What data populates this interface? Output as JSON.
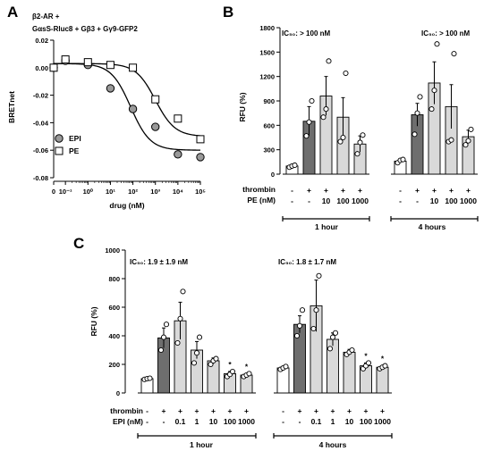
{
  "panels": {
    "a": {
      "letter": "A"
    },
    "b": {
      "letter": "B"
    },
    "c": {
      "letter": "C"
    }
  },
  "colors": {
    "black": "#000000",
    "dark_bar": "#6e6e6e",
    "light_bar": "#d9d9d9",
    "white": "#ffffff",
    "epi_fill": "#999999"
  },
  "chart_data": [
    {
      "id": "A",
      "type": "scatter",
      "title_line1": "β2-AR +",
      "title_line2": "GαsS-Rluc8 + Gβ3 + Gγ9-GFP2",
      "xlabel": "drug (nM)",
      "ylabel": "BRETnet",
      "xscale": "log",
      "xlim": [
        0.03,
        100000
      ],
      "ylim": [
        -0.08,
        0.02
      ],
      "yticks": [
        "0.02",
        "0.00",
        "-0.02",
        "-0.04",
        "-0.06",
        "-0.08"
      ],
      "ytick_values": [
        0.02,
        0.0,
        -0.02,
        -0.04,
        -0.06,
        -0.08
      ],
      "xticks": [
        "0",
        "10⁻¹",
        "10⁰",
        "10¹",
        "10²",
        "10³",
        "10⁴",
        "10⁵"
      ],
      "xtick_values": [
        0.03,
        0.1,
        1,
        10,
        100,
        1000,
        10000,
        100000
      ],
      "legend": [
        {
          "name": "EPI",
          "marker": "circle"
        },
        {
          "name": "PE",
          "marker": "square"
        }
      ],
      "series": [
        {
          "name": "EPI",
          "x": [
            0.03,
            0.1,
            1,
            10,
            100,
            1000,
            10000,
            100000
          ],
          "y": [
            0.0,
            0.005,
            0.002,
            -0.015,
            -0.03,
            -0.043,
            -0.063,
            -0.065
          ],
          "fit": {
            "top": 0.003,
            "bottom": -0.06,
            "log_ec50": 1.9
          }
        },
        {
          "name": "PE",
          "x": [
            0.03,
            0.1,
            1,
            10,
            100,
            1000,
            10000,
            100000
          ],
          "y": [
            0.0,
            0.006,
            0.004,
            0.002,
            0.0,
            -0.023,
            -0.037,
            -0.052
          ],
          "fit": {
            "top": 0.003,
            "bottom": -0.05,
            "log_ec50": 3.0
          }
        }
      ]
    },
    {
      "id": "B",
      "type": "bar",
      "ylabel": "RFU (%)",
      "ylim": [
        0,
        1800
      ],
      "yticks": [
        "0",
        "300",
        "600",
        "900",
        "1200",
        "1500",
        "1800"
      ],
      "ytick_values": [
        0,
        300,
        600,
        900,
        1200,
        1500,
        1800
      ],
      "row_labels": [
        "thrombin",
        "PE (nM)"
      ],
      "groups": [
        {
          "name": "1 hour",
          "ic50": "IC₅₀: > 100 nM",
          "thrombin": [
            "-",
            "+",
            "+",
            "+",
            "+"
          ],
          "conc": [
            "-",
            "-",
            "10",
            "100",
            "1000"
          ],
          "fills": [
            "white",
            "dark",
            "light",
            "light",
            "light"
          ],
          "means": [
            100,
            650,
            960,
            700,
            370
          ],
          "errors": [
            10,
            180,
            240,
            240,
            100
          ],
          "points": [
            [
              85,
              100,
              110
            ],
            [
              470,
              640,
              900
            ],
            [
              700,
              800,
              1390
            ],
            [
              400,
              450,
              1240
            ],
            [
              250,
              390,
              480
            ]
          ]
        },
        {
          "name": "4 hours",
          "ic50": "IC₅₀: > 100 nM",
          "thrombin": [
            "-",
            "+",
            "+",
            "+",
            "+"
          ],
          "conc": [
            "-",
            "-",
            "10",
            "100",
            "1000"
          ],
          "fills": [
            "white",
            "dark",
            "light",
            "light",
            "light"
          ],
          "means": [
            160,
            730,
            1120,
            830,
            460
          ],
          "errors": [
            15,
            140,
            260,
            270,
            80
          ],
          "points": [
            [
              140,
              170,
              180
            ],
            [
              490,
              750,
              950
            ],
            [
              800,
              1030,
              1600
            ],
            [
              400,
              420,
              1480
            ],
            [
              360,
              410,
              550
            ]
          ]
        }
      ]
    },
    {
      "id": "C",
      "type": "bar",
      "ylabel": "RFU (%)",
      "ylim": [
        0,
        1000
      ],
      "yticks": [
        "0",
        "200",
        "400",
        "600",
        "800",
        "1000"
      ],
      "ytick_values": [
        0,
        200,
        400,
        600,
        800,
        1000
      ],
      "row_labels": [
        "thrombin",
        "EPI (nM)"
      ],
      "groups": [
        {
          "name": "1 hour",
          "ic50": "IC₅₀: 1.9 ± 1.9 nM",
          "thrombin": [
            "-",
            "+",
            "+",
            "+",
            "+",
            "+",
            "+"
          ],
          "conc": [
            "-",
            "-",
            "0.1",
            "1",
            "10",
            "100",
            "1000"
          ],
          "fills": [
            "white",
            "dark",
            "light",
            "light",
            "light",
            "light",
            "light"
          ],
          "means": [
            100,
            385,
            505,
            300,
            225,
            135,
            125
          ],
          "errors": [
            5,
            70,
            130,
            60,
            20,
            15,
            10
          ],
          "points": [
            [
              95,
              100,
              103
            ],
            [
              300,
              390,
              480
            ],
            [
              350,
              520,
              710
            ],
            [
              210,
              280,
              390
            ],
            [
              200,
              225,
              240
            ],
            [
              115,
              130,
              150
            ],
            [
              115,
              125,
              135
            ]
          ],
          "stars": [
            false,
            false,
            false,
            false,
            false,
            true,
            true
          ]
        },
        {
          "name": "4 hours",
          "ic50": "IC₅₀: 1.8 ± 1.7 nM",
          "thrombin": [
            "-",
            "+",
            "+",
            "+",
            "+",
            "+",
            "+"
          ],
          "conc": [
            "-",
            "-",
            "0.1",
            "1",
            "10",
            "100",
            "1000"
          ],
          "fills": [
            "white",
            "dark",
            "light",
            "light",
            "light",
            "light",
            "light"
          ],
          "means": [
            175,
            480,
            610,
            375,
            285,
            190,
            180
          ],
          "errors": [
            10,
            60,
            180,
            45,
            20,
            20,
            10
          ],
          "points": [
            [
              165,
              175,
              185
            ],
            [
              400,
              470,
              580
            ],
            [
              450,
              580,
              820
            ],
            [
              310,
              390,
              420
            ],
            [
              270,
              285,
              300
            ],
            [
              170,
              190,
              210
            ],
            [
              170,
              180,
              190
            ]
          ],
          "stars": [
            false,
            false,
            false,
            false,
            false,
            true,
            true
          ]
        }
      ]
    }
  ]
}
